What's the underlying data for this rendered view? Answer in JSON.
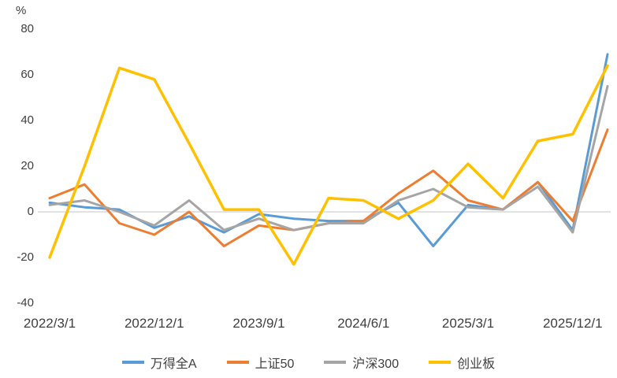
{
  "chart_data": {
    "type": "line",
    "title": "",
    "ylabel": "%",
    "ylim": [
      -40,
      80
    ],
    "yticks": [
      80,
      60,
      40,
      20,
      0,
      -20,
      -40
    ],
    "n_points": 17,
    "x_tick_labels": [
      "2022/3/1",
      "2022/12/1",
      "2023/9/1",
      "2024/6/1",
      "2025/3/1",
      "2025/12/1"
    ],
    "x_tick_indices": [
      0,
      3,
      6,
      9,
      12,
      15
    ],
    "grid": false,
    "legend_position": "bottom",
    "zero_line_color": "#d9d9d9",
    "axis_text_color": "#404040",
    "series": [
      {
        "name": "万得全A",
        "color": "#5b9bd5",
        "values": [
          4,
          2,
          1,
          -7,
          -2,
          -9,
          -1,
          -3,
          -4,
          -4,
          4,
          -15,
          3,
          1,
          13,
          -8,
          69
        ]
      },
      {
        "name": "上证50",
        "color": "#ed7d31",
        "values": [
          6,
          12,
          -5,
          -10,
          0,
          -15,
          -6,
          -8,
          -5,
          -4,
          8,
          18,
          5,
          1,
          13,
          -4,
          36
        ]
      },
      {
        "name": "沪深300",
        "color": "#a5a5a5",
        "values": [
          3,
          5,
          0,
          -6,
          5,
          -8,
          -3,
          -8,
          -5,
          -5,
          5,
          10,
          2,
          1,
          11,
          -9,
          55
        ]
      },
      {
        "name": "创业板",
        "color": "#ffc000",
        "values": [
          -20,
          20,
          63,
          58,
          30,
          1,
          1,
          -23,
          6,
          5,
          -3,
          5,
          21,
          6,
          31,
          34,
          64
        ]
      }
    ]
  }
}
